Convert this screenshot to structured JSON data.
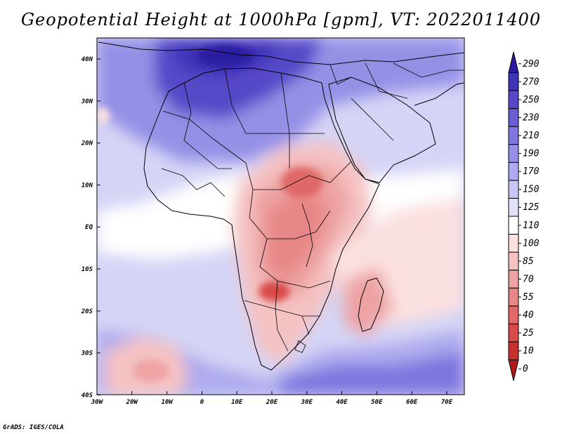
{
  "title": "Geopotential Height at 1000hPa [gpm], VT: 2022011400",
  "credit": "GrADS: IGES/COLA",
  "map": {
    "lon_labels": [
      "30W",
      "20W",
      "10W",
      "0",
      "10E",
      "20E",
      "30E",
      "40E",
      "50E",
      "60E",
      "70E"
    ],
    "lat_labels": [
      "40N",
      "30N",
      "20N",
      "10N",
      "EQ",
      "10S",
      "20S",
      "30S",
      "40S"
    ],
    "lon_range": [
      -30,
      75
    ],
    "lat_range": [
      -40,
      45
    ]
  },
  "colorbar": {
    "levels": [
      "290",
      "270",
      "250",
      "230",
      "210",
      "190",
      "170",
      "150",
      "125",
      "110",
      "100",
      "85",
      "70",
      "55",
      "40",
      "25",
      "10",
      "0"
    ],
    "colors": [
      "#2a1aa0",
      "#3f33b8",
      "#5648c8",
      "#6a5ed6",
      "#7f76de",
      "#9590e6",
      "#aeaaee",
      "#c8c6f4",
      "#e2e1fa",
      "#ffffff",
      "#fbe0e0",
      "#f5c2c2",
      "#eea3a3",
      "#e78686",
      "#e06868",
      "#d84a4a",
      "#c83030",
      "#b01a1a"
    ]
  }
}
